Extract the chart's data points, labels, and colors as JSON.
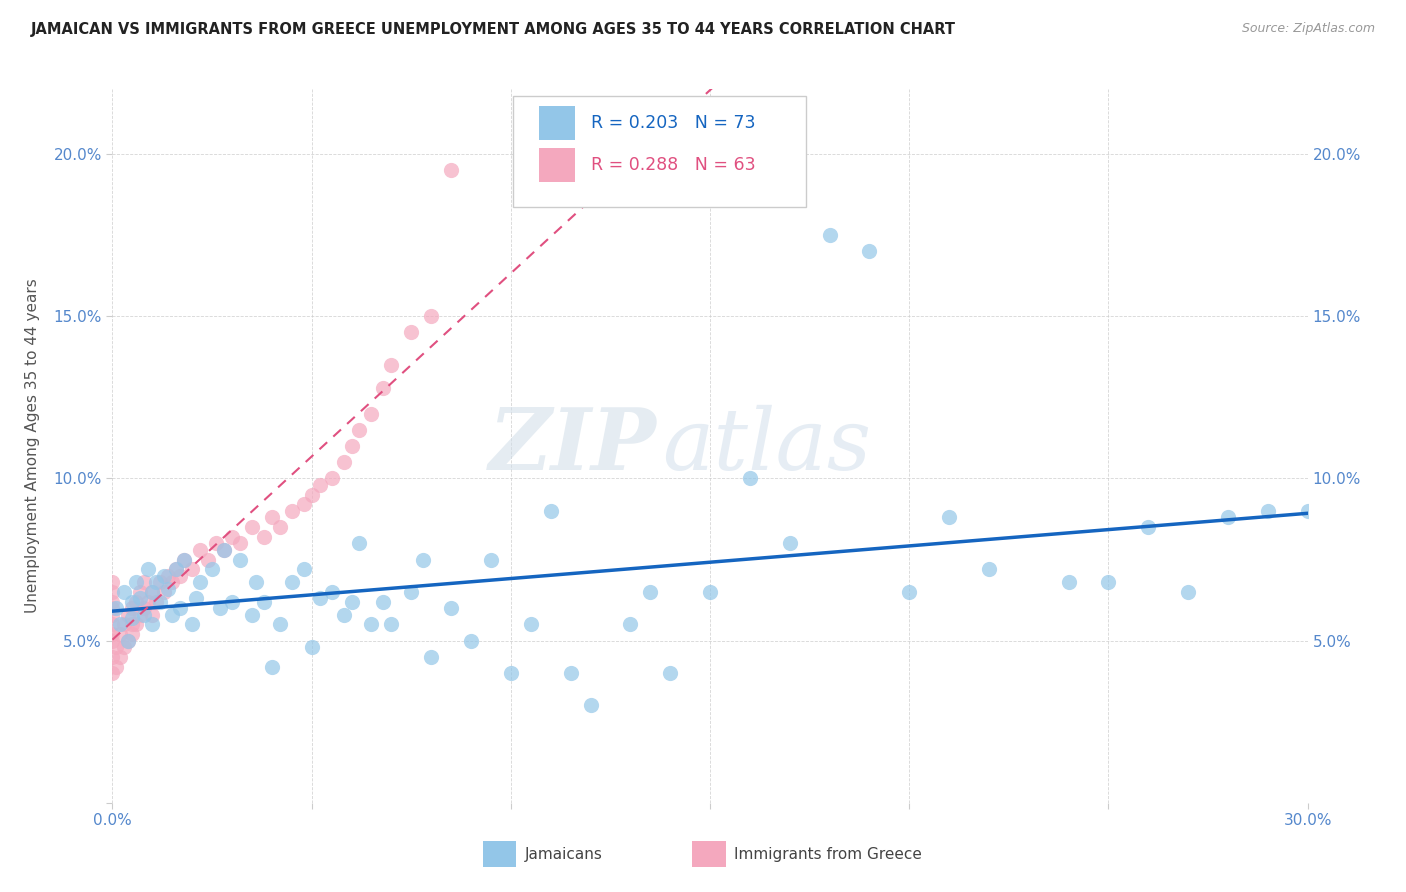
{
  "title": "JAMAICAN VS IMMIGRANTS FROM GREECE UNEMPLOYMENT AMONG AGES 35 TO 44 YEARS CORRELATION CHART",
  "source": "Source: ZipAtlas.com",
  "xlabel": "",
  "ylabel": "Unemployment Among Ages 35 to 44 years",
  "xlim": [
    0.0,
    0.3
  ],
  "ylim": [
    0.0,
    0.22
  ],
  "xticks": [
    0.0,
    0.05,
    0.1,
    0.15,
    0.2,
    0.25,
    0.3
  ],
  "yticks": [
    0.0,
    0.05,
    0.1,
    0.15,
    0.2
  ],
  "xticklabels": [
    "0.0%",
    "",
    "",
    "",
    "",
    "",
    "30.0%"
  ],
  "yticklabels": [
    "",
    "5.0%",
    "10.0%",
    "15.0%",
    "20.0%"
  ],
  "blue_color": "#93c6e8",
  "pink_color": "#f4a8be",
  "trend_blue": "#1565c0",
  "trend_pink": "#e05080",
  "r_blue": 0.203,
  "n_blue": 73,
  "r_pink": 0.288,
  "n_pink": 63,
  "watermark_zip": "ZIP",
  "watermark_atlas": "atlas",
  "legend_labels": [
    "Jamaicans",
    "Immigrants from Greece"
  ],
  "blue_scatter_x": [
    0.001,
    0.002,
    0.003,
    0.004,
    0.005,
    0.005,
    0.006,
    0.007,
    0.008,
    0.009,
    0.01,
    0.01,
    0.011,
    0.012,
    0.013,
    0.014,
    0.015,
    0.016,
    0.017,
    0.018,
    0.02,
    0.021,
    0.022,
    0.025,
    0.027,
    0.028,
    0.03,
    0.032,
    0.035,
    0.036,
    0.038,
    0.04,
    0.042,
    0.045,
    0.048,
    0.05,
    0.052,
    0.055,
    0.058,
    0.06,
    0.062,
    0.065,
    0.068,
    0.07,
    0.075,
    0.078,
    0.08,
    0.085,
    0.09,
    0.095,
    0.1,
    0.105,
    0.11,
    0.115,
    0.12,
    0.13,
    0.135,
    0.14,
    0.15,
    0.16,
    0.17,
    0.18,
    0.19,
    0.2,
    0.21,
    0.22,
    0.24,
    0.25,
    0.26,
    0.27,
    0.28,
    0.29,
    0.3
  ],
  "blue_scatter_y": [
    0.06,
    0.055,
    0.065,
    0.05,
    0.062,
    0.057,
    0.068,
    0.063,
    0.058,
    0.072,
    0.055,
    0.065,
    0.068,
    0.062,
    0.07,
    0.066,
    0.058,
    0.072,
    0.06,
    0.075,
    0.055,
    0.063,
    0.068,
    0.072,
    0.06,
    0.078,
    0.062,
    0.075,
    0.058,
    0.068,
    0.062,
    0.042,
    0.055,
    0.068,
    0.072,
    0.048,
    0.063,
    0.065,
    0.058,
    0.062,
    0.08,
    0.055,
    0.062,
    0.055,
    0.065,
    0.075,
    0.045,
    0.06,
    0.05,
    0.075,
    0.04,
    0.055,
    0.09,
    0.04,
    0.03,
    0.055,
    0.065,
    0.04,
    0.065,
    0.1,
    0.08,
    0.175,
    0.17,
    0.065,
    0.088,
    0.072,
    0.068,
    0.068,
    0.085,
    0.065,
    0.088,
    0.09,
    0.09
  ],
  "pink_scatter_x": [
    0.0,
    0.0,
    0.0,
    0.0,
    0.0,
    0.0,
    0.0,
    0.0,
    0.0,
    0.0,
    0.001,
    0.001,
    0.002,
    0.002,
    0.003,
    0.003,
    0.004,
    0.004,
    0.005,
    0.005,
    0.005,
    0.006,
    0.006,
    0.007,
    0.007,
    0.008,
    0.008,
    0.009,
    0.01,
    0.01,
    0.011,
    0.012,
    0.013,
    0.014,
    0.015,
    0.016,
    0.017,
    0.018,
    0.02,
    0.022,
    0.024,
    0.026,
    0.028,
    0.03,
    0.032,
    0.035,
    0.038,
    0.04,
    0.042,
    0.045,
    0.048,
    0.05,
    0.052,
    0.055,
    0.058,
    0.06,
    0.062,
    0.065,
    0.068,
    0.07,
    0.075,
    0.08,
    0.085
  ],
  "pink_scatter_y": [
    0.04,
    0.045,
    0.05,
    0.052,
    0.055,
    0.058,
    0.06,
    0.062,
    0.065,
    0.068,
    0.042,
    0.048,
    0.045,
    0.052,
    0.048,
    0.055,
    0.05,
    0.058,
    0.052,
    0.055,
    0.06,
    0.055,
    0.062,
    0.058,
    0.065,
    0.06,
    0.068,
    0.062,
    0.058,
    0.065,
    0.062,
    0.068,
    0.065,
    0.07,
    0.068,
    0.072,
    0.07,
    0.075,
    0.072,
    0.078,
    0.075,
    0.08,
    0.078,
    0.082,
    0.08,
    0.085,
    0.082,
    0.088,
    0.085,
    0.09,
    0.092,
    0.095,
    0.098,
    0.1,
    0.105,
    0.11,
    0.115,
    0.12,
    0.128,
    0.135,
    0.145,
    0.15,
    0.195
  ]
}
